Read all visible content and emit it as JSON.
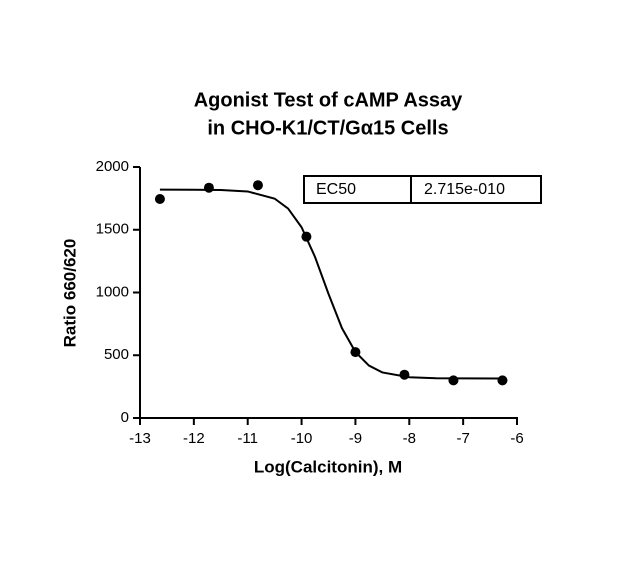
{
  "chart_data": {
    "type": "scatter",
    "title": [
      "Agonist Test of cAMP Assay",
      "in CHO-K1/CT/Gα15 Cells"
    ],
    "x_label": "Log(Calcitonin), M",
    "y_label": "Ratio 660/620",
    "xlim": [
      -13,
      -6
    ],
    "xticks": [
      -13,
      -12,
      -11,
      -10,
      -9,
      -8,
      -7,
      -6
    ],
    "ylim": [
      0,
      2000
    ],
    "yticks": [
      0,
      500,
      1000,
      1500,
      2000
    ],
    "color": "#000000",
    "points": {
      "x": [
        -12.63,
        -11.72,
        -10.81,
        -9.91,
        -9.0,
        -8.09,
        -7.18,
        -6.27
      ],
      "y": [
        1745,
        1835,
        1855,
        1445,
        525,
        345,
        300,
        300
      ]
    },
    "fit": {
      "x": [
        -12.63,
        -12,
        -11.5,
        -11,
        -10.5,
        -10.25,
        -10,
        -9.75,
        -9.5,
        -9.25,
        -9,
        -8.75,
        -8.5,
        -8,
        -7.5,
        -7,
        -6.27
      ],
      "y": [
        1820,
        1819,
        1817,
        1805,
        1748,
        1669,
        1520,
        1283,
        989,
        716,
        526,
        418,
        363,
        325,
        317,
        316,
        315
      ]
    },
    "annotation": {
      "label": "EC50",
      "value": "2.715e-010"
    }
  }
}
